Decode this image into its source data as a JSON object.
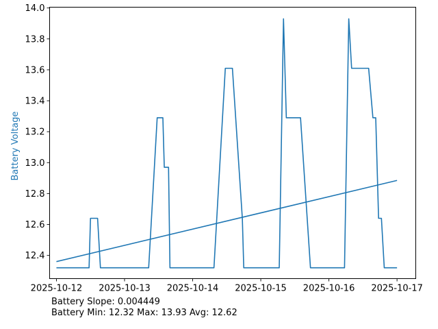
{
  "chart_data": {
    "type": "line",
    "title": "",
    "xlabel": "",
    "ylabel": "Battery Voltage",
    "x_ticks": [
      "2025-10-12",
      "2025-10-13",
      "2025-10-14",
      "2025-10-15",
      "2025-10-16",
      "2025-10-17"
    ],
    "y_ticks": [
      "12.4",
      "12.6",
      "12.8",
      "13.0",
      "13.2",
      "13.4",
      "13.6",
      "13.8",
      "14.0"
    ],
    "xlim": [
      "2025-10-11T21:36",
      "2025-10-17T06:36"
    ],
    "ylim": [
      12.25,
      14.005
    ],
    "grid": false,
    "colors": {
      "line": "#1f77b4",
      "ylabel": "#1f77b4",
      "axes": "#000000"
    },
    "series": [
      {
        "x": [
          "2025-10-12T00:00",
          "2025-10-12T11:30",
          "2025-10-12T12:00",
          "2025-10-12T14:30",
          "2025-10-12T15:30",
          "2025-10-13T08:30",
          "2025-10-13T11:30",
          "2025-10-13T13:30",
          "2025-10-13T14:00",
          "2025-10-13T15:30",
          "2025-10-13T16:00",
          "2025-10-13T17:30",
          "2025-10-13T18:00",
          "2025-10-14T07:30",
          "2025-10-14T11:30",
          "2025-10-14T13:30",
          "2025-10-14T14:00",
          "2025-10-14T17:30",
          "2025-10-14T18:00",
          "2025-10-15T06:30",
          "2025-10-15T08:00",
          "2025-10-15T09:00",
          "2025-10-15T14:00",
          "2025-10-15T17:30",
          "2025-10-16T05:30",
          "2025-10-16T07:00",
          "2025-10-16T08:00",
          "2025-10-16T14:00",
          "2025-10-16T15:30",
          "2025-10-16T16:30",
          "2025-10-16T17:30",
          "2025-10-16T18:30",
          "2025-10-16T19:30",
          "2025-10-17T00:00"
        ],
        "y": [
          12.32,
          12.32,
          12.64,
          12.64,
          12.32,
          12.32,
          13.29,
          13.29,
          12.97,
          12.97,
          12.32,
          12.32,
          12.32,
          12.32,
          13.61,
          13.61,
          13.61,
          12.64,
          12.32,
          12.32,
          13.93,
          13.29,
          13.29,
          12.32,
          12.32,
          13.93,
          13.61,
          13.61,
          13.29,
          13.29,
          12.64,
          12.64,
          12.32,
          12.32
        ]
      },
      {
        "x": [
          "2025-10-12T00:00",
          "2025-10-17T00:00"
        ],
        "y": [
          12.36,
          12.885
        ]
      }
    ]
  },
  "stats": {
    "slope": "Battery Slope: 0.004449",
    "minmax": "Battery Min: 12.32 Max: 13.93 Avg: 12.62"
  }
}
